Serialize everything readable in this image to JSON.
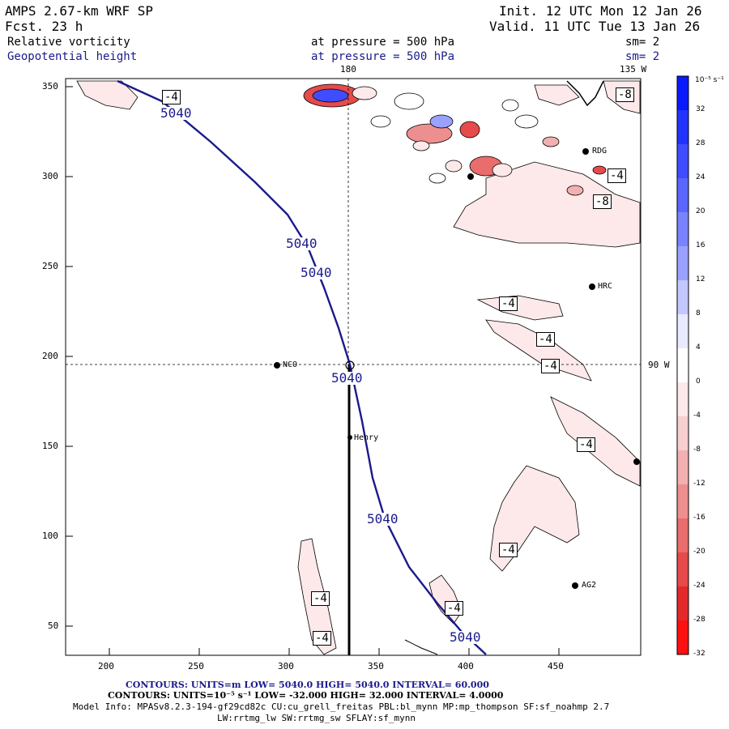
{
  "header": {
    "title": "AMPS 2.67-km WRF SP",
    "fcst": "Fcst.    23 h",
    "init": "Init. 12 UTC Mon 12 Jan 26",
    "valid": "Valid. 11 UTC Tue 13 Jan 26",
    "field1": {
      "name": "Relative vorticity",
      "level": "at pressure =  500 hPa",
      "sm": "sm= 2"
    },
    "field2": {
      "name": "Geopotential height",
      "level": "at pressure =  500 hPa",
      "sm": "sm= 2"
    }
  },
  "meridians": {
    "top_180": "180",
    "top_135w": "135 W",
    "right_90w": "90 W"
  },
  "axes": {
    "x_ticks": [
      "200",
      "250",
      "300",
      "350",
      "400",
      "450"
    ],
    "y_ticks": [
      "350",
      "300",
      "250",
      "200",
      "150",
      "100",
      "50"
    ]
  },
  "stations": [
    {
      "name": "NCO"
    },
    {
      "name": "Henry"
    },
    {
      "name": "RDG"
    },
    {
      "name": "HRC"
    },
    {
      "name": "AG2"
    }
  ],
  "height_labels": [
    "5040",
    "5040",
    "5040",
    "5040",
    "5040",
    "5040"
  ],
  "vort_labels": [
    "-4",
    "-8",
    "-4",
    "-8",
    "-4",
    "-4",
    "-4",
    "-4",
    "-4",
    "-4",
    "-4"
  ],
  "colorbar": {
    "unit": "10⁻⁵ s⁻¹",
    "labels": [
      "32",
      "28",
      "24",
      "20",
      "16",
      "12",
      "8",
      "4",
      "0",
      "-4",
      "-8",
      "-12",
      "-16",
      "-20",
      "-24",
      "-28",
      "-32"
    ],
    "colors": [
      "#0a1aff",
      "#2233ff",
      "#3f4cff",
      "#5a66ff",
      "#7a83ff",
      "#9aa1ff",
      "#c3c7ff",
      "#e8eaff",
      "#ffffff",
      "#fde9e9",
      "#f8cfcf",
      "#f3b0b0",
      "#ee8f8f",
      "#ea6d6d",
      "#e64a4a",
      "#e32a2a",
      "#ff1010"
    ]
  },
  "footer": {
    "contours1": "CONTOURS:  UNITS=m  LOW=  5040.0      HIGH=  5040.0      INTERVAL=  60.000",
    "contours2": "CONTOURS:  UNITS=10⁻⁵ s⁻¹  LOW= -32.000      HIGH=  32.000      INTERVAL=  4.0000",
    "model": "Model Info: MPASv8.2.3-194-gf29cd82c CU:cu_grell_freitas PBL:bl_mynn MP:mp_thompson SF:sf_noahmp 2.7",
    "model2": "LW:rrtmg_lw SW:rrtmg_sw SFLAY:sf_mynn"
  }
}
